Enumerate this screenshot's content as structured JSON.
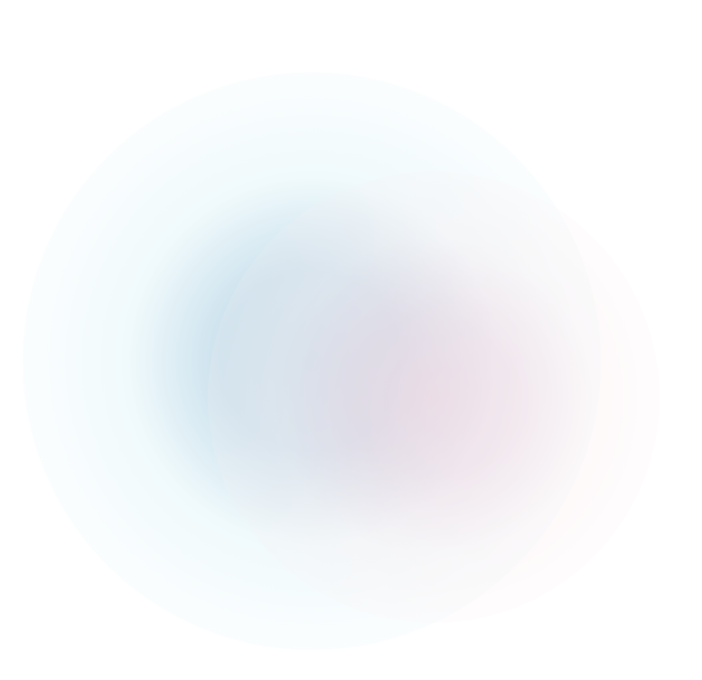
{
  "background": {
    "base_color": "#ffffff",
    "blobs": [
      {
        "name": "blue-glow",
        "color": "#c6deeb",
        "edge_color": "#e6f6fa"
      },
      {
        "name": "pink-glow",
        "color": "#f0d8e2",
        "edge_color": "#fbeef0"
      }
    ]
  }
}
